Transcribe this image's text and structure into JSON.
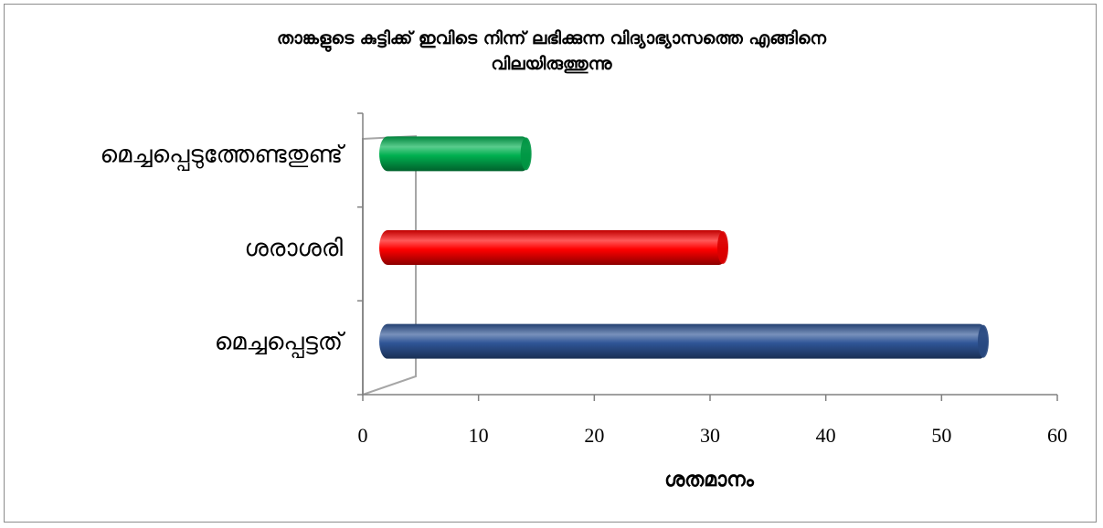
{
  "chart_data": {
    "type": "bar",
    "orientation": "horizontal",
    "title": "താങ്കളുടെ കുട്ടിക്ക് ഇവിടെ നിന്ന് ലഭിക്കുന്ന വിദ്യാഭ്യാസത്തെ എങ്ങിനെ\nവിലയിരുത്തുന്നു",
    "xlabel": "ശതമാനം",
    "ylabel": "",
    "categories": [
      "മെച്ചപ്പെട്ടത്",
      "ശരാശരി",
      "മെച്ചപ്പെടുത്തേണ്ടതുണ്ട്"
    ],
    "values": [
      54,
      31.5,
      14.5
    ],
    "bar_colors": [
      "#2f5597",
      "#ff0000",
      "#00b050"
    ],
    "xlim": [
      0,
      60
    ],
    "xticks": [
      "0",
      "10",
      "20",
      "30",
      "40",
      "50",
      "60"
    ],
    "grid": false,
    "legend": "none"
  }
}
